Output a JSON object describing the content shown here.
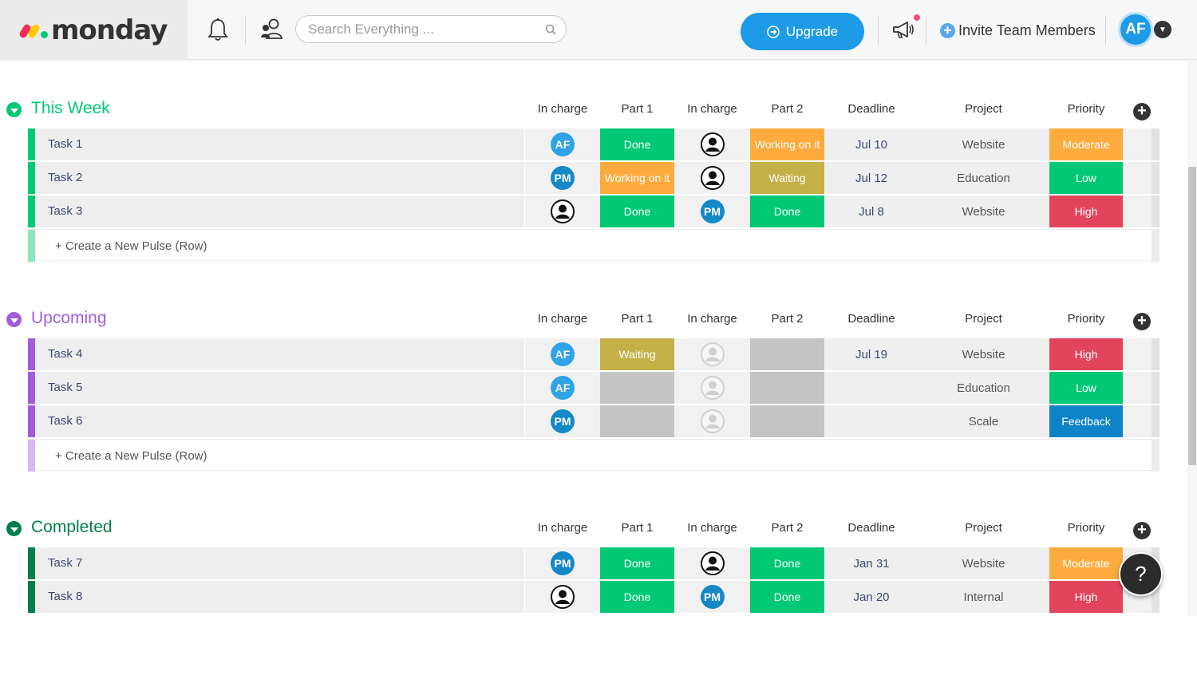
{
  "topbar": {
    "logo_text": "monday",
    "search_placeholder": "Search Everything ...",
    "upgrade_label": "Upgrade",
    "invite_label": "Invite Team Members",
    "user_initials": "AF"
  },
  "columns": [
    "In charge",
    "Part 1",
    "In charge",
    "Part 2",
    "Deadline",
    "Project",
    "Priority"
  ],
  "colors": {
    "done": "#00c875",
    "working": "#fdab3d",
    "waiting": "#c4b046",
    "empty": "#c4c4c4",
    "high": "#e2445c",
    "low": "#00c875",
    "moderate": "#fdab3d",
    "feedback": "#0f83c7",
    "af": "#2fa3e6",
    "pm": "#1588c6"
  },
  "new_row_label": "+ Create a New Pulse (Row)",
  "help_label": "?",
  "groups": [
    {
      "title": "This Week",
      "color": "#00c875",
      "light": "#8ee5bd",
      "rows": [
        {
          "name": "Task 1",
          "incharge1": "AF",
          "part1": "Done",
          "incharge2": "user",
          "part2": "Working on it",
          "deadline": "Jul 10",
          "project": "Website",
          "priority": "Moderate"
        },
        {
          "name": "Task 2",
          "incharge1": "PM",
          "part1": "Working on it",
          "incharge2": "user",
          "part2": "Waiting",
          "deadline": "Jul 12",
          "project": "Education",
          "priority": "Low"
        },
        {
          "name": "Task 3",
          "incharge1": "user",
          "part1": "Done",
          "incharge2": "PM",
          "part2": "Done",
          "deadline": "Jul 8",
          "project": "Website",
          "priority": "High"
        }
      ]
    },
    {
      "title": "Upcoming",
      "color": "#a25ddc",
      "light": "#d8b8f1",
      "rows": [
        {
          "name": "Task 4",
          "incharge1": "AF",
          "part1": "Waiting",
          "incharge2": "empty",
          "part2": "",
          "deadline": "Jul 19",
          "project": "Website",
          "priority": "High"
        },
        {
          "name": "Task 5",
          "incharge1": "AF",
          "part1": "",
          "incharge2": "empty",
          "part2": "",
          "deadline": "",
          "project": "Education",
          "priority": "Low"
        },
        {
          "name": "Task 6",
          "incharge1": "PM",
          "part1": "",
          "incharge2": "empty",
          "part2": "",
          "deadline": "",
          "project": "Scale",
          "priority": "Feedback"
        }
      ]
    },
    {
      "title": "Completed",
      "color": "#037f4c",
      "light": "#7cc0a4",
      "rows": [
        {
          "name": "Task 7",
          "incharge1": "PM",
          "part1": "Done",
          "incharge2": "user",
          "part2": "Done",
          "deadline": "Jan 31",
          "project": "Website",
          "priority": "Moderate"
        },
        {
          "name": "Task 8",
          "incharge1": "user",
          "part1": "Done",
          "incharge2": "PM",
          "part2": "Done",
          "deadline": "Jan 20",
          "project": "Internal",
          "priority": "High"
        }
      ]
    }
  ]
}
